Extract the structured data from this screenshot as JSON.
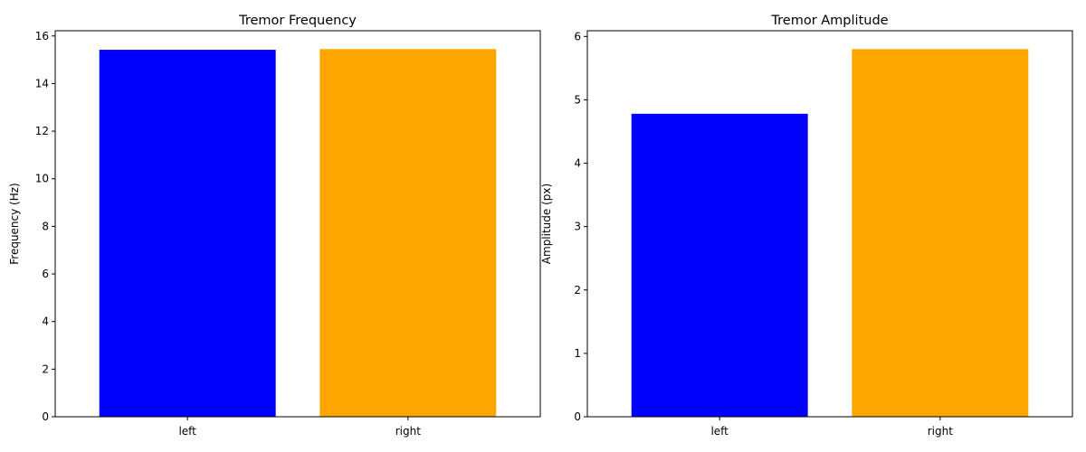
{
  "chart_data": [
    {
      "type": "bar",
      "title": "Tremor Frequency",
      "xlabel": "",
      "ylabel": "Frequency (Hz)",
      "categories": [
        "left",
        "right"
      ],
      "values": [
        15.42,
        15.45
      ],
      "colors": [
        "#0000ff",
        "#ffa500"
      ],
      "ylim": [
        0,
        16.22
      ],
      "yticks": [
        0,
        2,
        4,
        6,
        8,
        10,
        12,
        14,
        16
      ],
      "grid": false
    },
    {
      "type": "bar",
      "title": "Tremor Amplitude",
      "xlabel": "",
      "ylabel": "Amplitude (px)",
      "categories": [
        "left",
        "right"
      ],
      "values": [
        4.78,
        5.8
      ],
      "colors": [
        "#0000ff",
        "#ffa500"
      ],
      "ylim": [
        0,
        6.09
      ],
      "yticks": [
        0,
        1,
        2,
        3,
        4,
        5,
        6
      ],
      "grid": false
    }
  ]
}
